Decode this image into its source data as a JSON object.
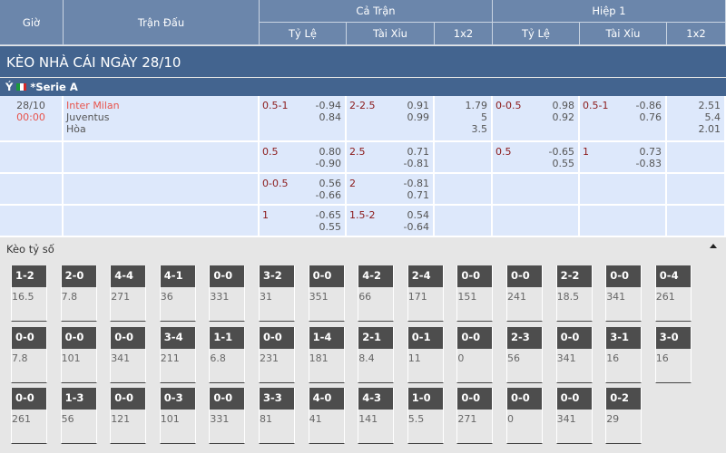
{
  "header": {
    "time": "Giờ",
    "match": "Trận Đấu",
    "full": "Cả Trận",
    "half": "Hiệp 1",
    "hdp": "Tỷ Lệ",
    "ou": "Tài Xỉu",
    "x12": "1x2"
  },
  "title": "KÈO NHÀ CÁI NGÀY 28/10",
  "league": {
    "country": "Ý",
    "name": "*Serie A",
    "flag_colors": [
      "#1a9a3a",
      "#ffffff",
      "#d62828"
    ]
  },
  "match": {
    "date": "28/10",
    "time": "00:00",
    "home": "Inter Milan",
    "away": "Juventus",
    "draw": "Hòa"
  },
  "rows": [
    {
      "ft_hdp": "0.5-1",
      "ft_hdp_o": [
        "-0.94",
        "0.84"
      ],
      "ft_ou": "2-2.5",
      "ft_ou_o": [
        "0.91",
        "0.99"
      ],
      "ft_1x2": [
        "1.79",
        "5",
        "3.5"
      ],
      "h1_hdp": "0-0.5",
      "h1_hdp_o": [
        "0.98",
        "0.92"
      ],
      "h1_ou": "0.5-1",
      "h1_ou_o": [
        "-0.86",
        "0.76"
      ],
      "h1_1x2": [
        "2.51",
        "5.4",
        "2.01"
      ]
    },
    {
      "ft_hdp": "0.5",
      "ft_hdp_o": [
        "0.80",
        "-0.90"
      ],
      "ft_ou": "2.5",
      "ft_ou_o": [
        "0.71",
        "-0.81"
      ],
      "ft_1x2": [],
      "h1_hdp": "0.5",
      "h1_hdp_o": [
        "-0.65",
        "0.55"
      ],
      "h1_ou": "1",
      "h1_ou_o": [
        "0.73",
        "-0.83"
      ],
      "h1_1x2": []
    },
    {
      "ft_hdp": "0-0.5",
      "ft_hdp_o": [
        "0.56",
        "-0.66"
      ],
      "ft_ou": "2",
      "ft_ou_o": [
        "-0.81",
        "0.71"
      ],
      "ft_1x2": [],
      "h1_hdp": "",
      "h1_hdp_o": [],
      "h1_ou": "",
      "h1_ou_o": [],
      "h1_1x2": []
    },
    {
      "ft_hdp": "1",
      "ft_hdp_o": [
        "-0.65",
        "0.55"
      ],
      "ft_ou": "1.5-2",
      "ft_ou_o": [
        "0.54",
        "-0.64"
      ],
      "ft_1x2": [],
      "h1_hdp": "",
      "h1_hdp_o": [],
      "h1_ou": "",
      "h1_ou_o": [],
      "h1_1x2": []
    }
  ],
  "correct_score": {
    "title": "Kèo tỷ số",
    "toggle_icon": "caret-up-icon",
    "cards": [
      [
        [
          "1-2",
          "16.5"
        ],
        [
          "2-0",
          "7.8"
        ],
        [
          "4-4",
          "271"
        ],
        [
          "4-1",
          "36"
        ],
        [
          "0-0",
          "331"
        ],
        [
          "3-2",
          "31"
        ],
        [
          "0-0",
          "351"
        ],
        [
          "4-2",
          "66"
        ],
        [
          "2-4",
          "171"
        ],
        [
          "0-0",
          "151"
        ],
        [
          "0-0",
          "241"
        ],
        [
          "2-2",
          "18.5"
        ],
        [
          "0-0",
          "341"
        ],
        [
          "0-4",
          "261"
        ]
      ],
      [
        [
          "0-0",
          "7.8"
        ],
        [
          "0-0",
          "101"
        ],
        [
          "0-0",
          "341"
        ],
        [
          "3-4",
          "211"
        ],
        [
          "1-1",
          "6.8"
        ],
        [
          "0-0",
          "231"
        ],
        [
          "1-4",
          "181"
        ],
        [
          "2-1",
          "8.4"
        ],
        [
          "0-1",
          "11"
        ],
        [
          "0-0",
          "0"
        ],
        [
          "2-3",
          "56"
        ],
        [
          "0-0",
          "341"
        ],
        [
          "3-1",
          "16"
        ],
        [
          "3-0",
          "16"
        ]
      ],
      [
        [
          "0-0",
          "261"
        ],
        [
          "1-3",
          "56"
        ],
        [
          "0-0",
          "121"
        ],
        [
          "0-3",
          "101"
        ],
        [
          "0-0",
          "331"
        ],
        [
          "3-3",
          "81"
        ],
        [
          "4-0",
          "41"
        ],
        [
          "4-3",
          "141"
        ],
        [
          "1-0",
          "5.5"
        ],
        [
          "0-0",
          "271"
        ],
        [
          "0-0",
          "0"
        ],
        [
          "0-0",
          "341"
        ],
        [
          "0-2",
          "29"
        ]
      ]
    ]
  }
}
